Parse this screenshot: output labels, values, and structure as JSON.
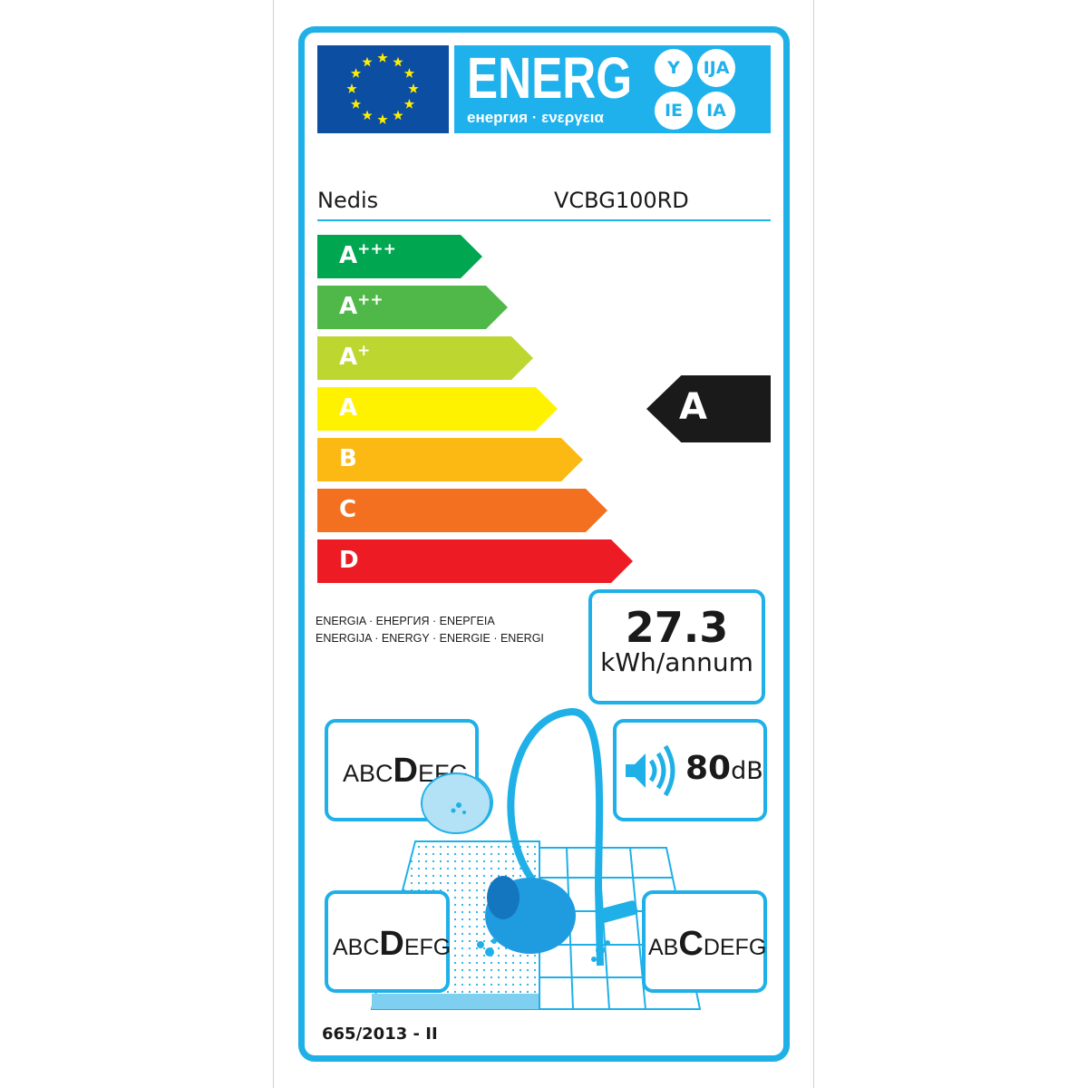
{
  "header": {
    "energy_word": "ENERG",
    "energy_subtitle": "енергия · ενεργεια",
    "suffixes": [
      "Y",
      "IJA",
      "IE",
      "IA"
    ],
    "flag_color": "#0b4ea2",
    "accent_color": "#1eb1ec"
  },
  "product": {
    "brand": "Nedis",
    "model": "VCBG100RD"
  },
  "scale": [
    {
      "letter": "A",
      "plus": "+++",
      "color": "#00a650"
    },
    {
      "letter": "A",
      "plus": "++",
      "color": "#50b848"
    },
    {
      "letter": "A",
      "plus": "+",
      "color": "#bed630"
    },
    {
      "letter": "A",
      "plus": "",
      "color": "#fff200"
    },
    {
      "letter": "B",
      "plus": "",
      "color": "#fdb913"
    },
    {
      "letter": "C",
      "plus": "",
      "color": "#f37021"
    },
    {
      "letter": "D",
      "plus": "",
      "color": "#ed1c24"
    }
  ],
  "rating": {
    "class": "A",
    "color": "#1a1a1a"
  },
  "energy_words": {
    "line1": "ENERGIA · ЕНЕРГИЯ · ΕΝΕΡΓΕΙΑ",
    "line2": "ENERGIJA · ENERGY · ENERGIE · ENERGI"
  },
  "consumption": {
    "value": "27.3",
    "unit": "kWh/annum"
  },
  "dust_emission": {
    "before": "ABC",
    "selected": "D",
    "after": "EFG"
  },
  "noise": {
    "value": "80",
    "unit": "dB",
    "icon": "speaker-icon"
  },
  "carpet_cleaning": {
    "before": "ABC",
    "selected": "D",
    "after": "EFG"
  },
  "hard_floor_cleaning": {
    "before": "AB",
    "selected": "C",
    "after": "DEFG"
  },
  "regulation": "665/2013 - II"
}
